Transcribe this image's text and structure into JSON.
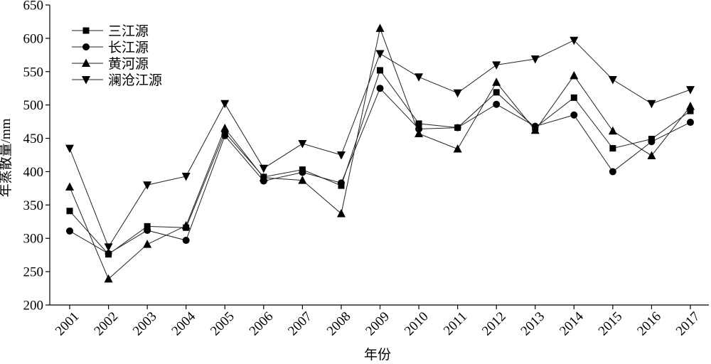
{
  "chart_data": {
    "type": "line",
    "xlabel": "年份",
    "ylabel": "年蒸散量/mm",
    "x": [
      "2001",
      "2002",
      "2003",
      "2004",
      "2005",
      "2006",
      "2007",
      "2008",
      "2009",
      "2010",
      "2011",
      "2012",
      "2013",
      "2014",
      "2015",
      "2016",
      "2017"
    ],
    "ylim": [
      200,
      650
    ],
    "yticks": [
      200,
      250,
      300,
      350,
      400,
      450,
      500,
      550,
      600,
      650
    ],
    "grid": false,
    "legend": "top-left",
    "line_color": "#222222",
    "marker_color": "#000000",
    "series": [
      {
        "name": "三江源",
        "marker": "square",
        "values": [
          341,
          276,
          318,
          316,
          459,
          392,
          403,
          379,
          552,
          472,
          466,
          519,
          466,
          511,
          435,
          449,
          491
        ]
      },
      {
        "name": "长江源",
        "marker": "circle",
        "values": [
          311,
          277,
          312,
          297,
          454,
          386,
          399,
          383,
          525,
          464,
          466,
          501,
          468,
          485,
          400,
          445,
          474
        ]
      },
      {
        "name": "黄河源",
        "marker": "triangle-up",
        "values": [
          377,
          239,
          291,
          319,
          465,
          391,
          387,
          337,
          615,
          457,
          434,
          534,
          462,
          544,
          461,
          424,
          498
        ]
      },
      {
        "name": "澜沧江源",
        "marker": "triangle-down",
        "values": [
          435,
          287,
          380,
          393,
          502,
          405,
          442,
          425,
          577,
          542,
          518,
          560,
          569,
          597,
          538,
          502,
          523
        ]
      }
    ]
  }
}
